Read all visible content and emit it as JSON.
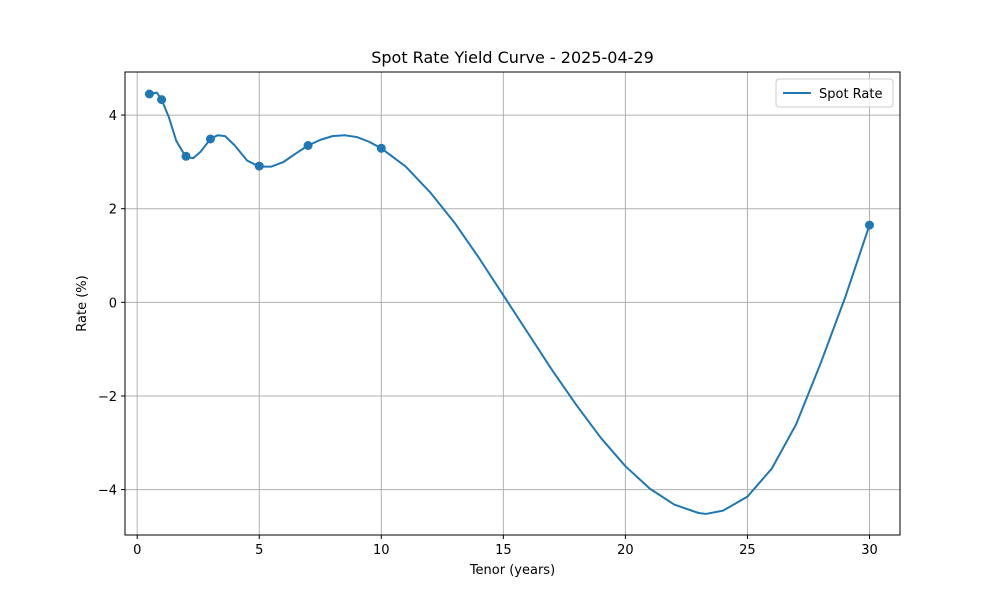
{
  "chart_data": {
    "type": "line",
    "title": "Spot Rate Yield Curve - 2025-04-29",
    "xlabel": "Tenor (years)",
    "ylabel": "Rate (%)",
    "xlim": [
      -0.5,
      31.25
    ],
    "ylim": [
      -4.97,
      4.92
    ],
    "xticks": [
      0,
      5,
      10,
      15,
      20,
      25,
      30
    ],
    "yticks": [
      -4,
      -2,
      0,
      2,
      4
    ],
    "ytick_labels": [
      "−4",
      "−2",
      "0",
      "2",
      "4"
    ],
    "grid": true,
    "legend": {
      "placement": "top-right",
      "entries": [
        "Spot Rate"
      ]
    },
    "colors": {
      "series": "#1f77b4",
      "grid": "#b0b0b0"
    },
    "series": [
      {
        "name": "Spot Rate",
        "points": [
          {
            "x": 0.5,
            "y": 4.45
          },
          {
            "x": 1,
            "y": 4.33
          },
          {
            "x": 2,
            "y": 3.12
          },
          {
            "x": 3,
            "y": 3.49
          },
          {
            "x": 5,
            "y": 2.91
          },
          {
            "x": 7,
            "y": 3.35
          },
          {
            "x": 10,
            "y": 3.29
          },
          {
            "x": 30,
            "y": 1.65
          }
        ],
        "curve": [
          [
            0.5,
            4.45
          ],
          [
            0.8,
            4.48
          ],
          [
            1,
            4.33
          ],
          [
            1.3,
            3.95
          ],
          [
            1.6,
            3.45
          ],
          [
            2,
            3.1
          ],
          [
            2.3,
            3.08
          ],
          [
            2.6,
            3.22
          ],
          [
            3,
            3.49
          ],
          [
            3.3,
            3.57
          ],
          [
            3.6,
            3.55
          ],
          [
            4,
            3.35
          ],
          [
            4.5,
            3.03
          ],
          [
            5,
            2.9
          ],
          [
            5.5,
            2.9
          ],
          [
            6,
            3.0
          ],
          [
            6.5,
            3.18
          ],
          [
            7,
            3.35
          ],
          [
            7.5,
            3.47
          ],
          [
            8,
            3.55
          ],
          [
            8.5,
            3.57
          ],
          [
            9,
            3.53
          ],
          [
            9.5,
            3.43
          ],
          [
            10,
            3.29
          ],
          [
            11,
            2.9
          ],
          [
            12,
            2.35
          ],
          [
            13,
            1.7
          ],
          [
            14,
            0.95
          ],
          [
            15,
            0.15
          ],
          [
            16,
            -0.65
          ],
          [
            17,
            -1.45
          ],
          [
            18,
            -2.2
          ],
          [
            19,
            -2.9
          ],
          [
            20,
            -3.5
          ],
          [
            21,
            -3.98
          ],
          [
            22,
            -4.32
          ],
          [
            23,
            -4.5
          ],
          [
            23.3,
            -4.52
          ],
          [
            24,
            -4.45
          ],
          [
            25,
            -4.15
          ],
          [
            26,
            -3.55
          ],
          [
            27,
            -2.6
          ],
          [
            28,
            -1.3
          ],
          [
            29,
            0.1
          ],
          [
            30,
            1.65
          ]
        ]
      }
    ]
  }
}
